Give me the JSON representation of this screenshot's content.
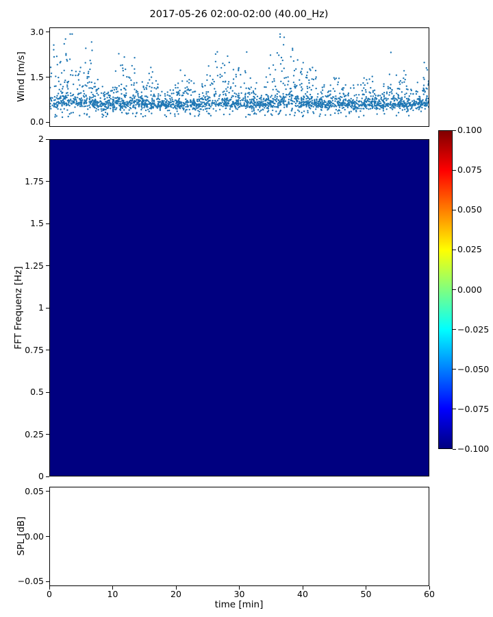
{
  "figure": {
    "title": "2017-05-26 02:00-02:00 (40.00_Hz)",
    "xlabel": "time [min]",
    "background": "#ffffff"
  },
  "wind_plot": {
    "ylabel": "Wind [m/s]",
    "ytick_labels": [
      "3.0",
      "1.5",
      "0.0"
    ],
    "ytick_values": [
      3.0,
      1.5,
      0.0
    ],
    "marker_color": "#1f77b4"
  },
  "spectrogram": {
    "ylabel": "FFT Frequenz [Hz]",
    "ytick_labels": [
      "2",
      "1.75",
      "1.5",
      "1.25",
      "1",
      "0.75",
      "0.5",
      "0.25",
      "0"
    ],
    "ytick_values": [
      2,
      1.75,
      1.5,
      1.25,
      1,
      0.75,
      0.5,
      0.25,
      0
    ],
    "fill_color": "#000080"
  },
  "colorbar": {
    "tick_labels": [
      "0.100",
      "0.075",
      "0.050",
      "0.025",
      "0.000",
      "−0.025",
      "−0.050",
      "−0.075",
      "−0.100"
    ],
    "tick_values": [
      0.1,
      0.075,
      0.05,
      0.025,
      0,
      -0.025,
      -0.05,
      -0.075,
      -0.1
    ],
    "cmap": "jet",
    "vmin": -0.1,
    "vmax": 0.1,
    "gradient_stops": [
      "#000080 0%",
      "#0000ff 12.5%",
      "#00ffff 37.5%",
      "#ffff00 62.5%",
      "#ff0000 87.5%",
      "#800000 100%"
    ]
  },
  "spl_plot": {
    "ylabel": "SPL [dB]",
    "ytick_labels": [
      "0.05",
      "0.00",
      "−0.05"
    ],
    "ytick_values": [
      0.05,
      0,
      -0.05
    ]
  },
  "xaxis": {
    "tick_labels": [
      "0",
      "10",
      "20",
      "30",
      "40",
      "50",
      "60"
    ],
    "tick_values": [
      0,
      10,
      20,
      30,
      40,
      50,
      60
    ]
  },
  "chart_data": [
    {
      "type": "scatter",
      "title": "2017-05-26 02:00-02:00 (40.00_Hz)",
      "ylabel": "Wind [m/s]",
      "xlabel": "time [min]",
      "xlim": [
        0,
        60
      ],
      "ylim": [
        -0.15,
        3.15
      ],
      "yticks": [
        0.0,
        1.5,
        3.0
      ],
      "marker_color": "#1f77b4",
      "summary": "Dense noisy wind-speed scatter over 0-60 min: persistent baseline band near 0.5-0.9 m/s with intermittent gusty bursts reaching ~2.0-2.9 m/s; occasional lulls down to ~0.1 m/s",
      "synth": {
        "seed": 20170526,
        "n_points": 2600
      }
    },
    {
      "type": "heatmap",
      "ylabel": "FFT Frequenz [Hz]",
      "xlim": [
        0,
        60
      ],
      "ylim": [
        0,
        2
      ],
      "yticks": [
        0,
        0.25,
        0.5,
        0.75,
        1,
        1.25,
        1.5,
        1.75,
        2
      ],
      "values_uniform": -0.1,
      "colormap": "jet",
      "clim": [
        -0.1,
        0.1
      ],
      "colorbar_ticks": [
        0.1,
        0.075,
        0.05,
        0.025,
        0,
        -0.025,
        -0.05,
        -0.075,
        -0.1
      ],
      "summary": "Spectrogram panel rendered entirely at the colormap minimum (uniform dark navy)"
    },
    {
      "type": "line",
      "ylabel": "SPL [dB]",
      "xlabel": "time [min]",
      "xlim": [
        0,
        60
      ],
      "ylim": [
        -0.055,
        0.055
      ],
      "yticks": [
        -0.05,
        0,
        0.05
      ],
      "xticks": [
        0,
        10,
        20,
        30,
        40,
        50,
        60
      ],
      "series": [],
      "summary": "Empty axes, no data plotted"
    }
  ]
}
